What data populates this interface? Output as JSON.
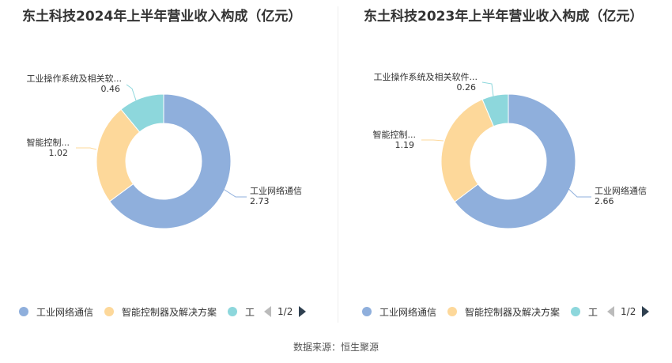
{
  "source_label": "数据来源：恒生聚源",
  "colors": [
    "#8fafdc",
    "#fdd89a",
    "#8dd7dc"
  ],
  "pager_text": "1/2",
  "chart_data": [
    {
      "type": "pie",
      "title": "东土科技2024年上半年营业收入构成（亿元）",
      "categories": [
        "工业网络通信",
        "智能控制器及解决方案",
        "工业操作系统及相关软件"
      ],
      "values": [
        2.73,
        1.02,
        0.46
      ],
      "value_labels": [
        "2.73",
        "1.02",
        "0.46"
      ],
      "label_names": [
        "工业网络通信",
        "智能控制...",
        "工业操作系统及相关软..."
      ],
      "legend": {
        "items": [
          "工业网络通信",
          "智能控制器及解决方案",
          "工"
        ],
        "placement": "bottom"
      }
    },
    {
      "type": "pie",
      "title": "东土科技2023年上半年营业收入构成（亿元）",
      "categories": [
        "工业网络通信",
        "智能控制器及解决方案",
        "工业操作系统及相关软件"
      ],
      "values": [
        2.66,
        1.19,
        0.26
      ],
      "value_labels": [
        "2.66",
        "1.19",
        "0.26"
      ],
      "label_names": [
        "工业网络通信",
        "智能控制...",
        "工业操作系统及相关软件..."
      ],
      "legend": {
        "items": [
          "工业网络通信",
          "智能控制器及解决方案",
          "工"
        ],
        "placement": "bottom"
      }
    }
  ]
}
